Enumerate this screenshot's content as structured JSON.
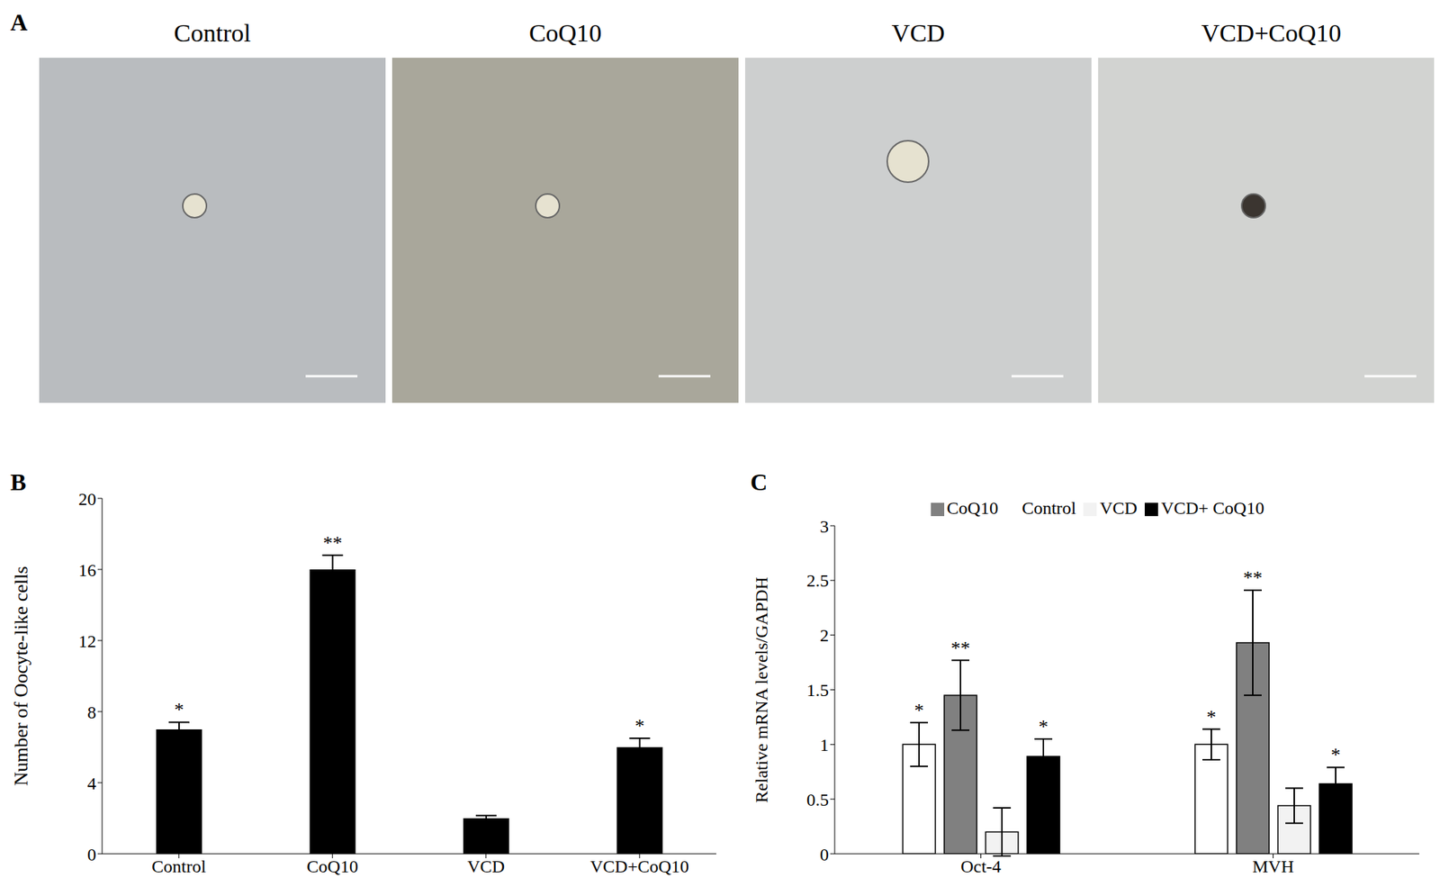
{
  "panel_a": {
    "label": "A",
    "titles": [
      "Control",
      "CoQ10",
      "VCD",
      "VCD+CoQ10"
    ]
  },
  "chart_data": [
    {
      "type": "bar",
      "label": "B",
      "y_label": "Number of Oocyte-like cells",
      "categories": [
        "Control",
        "CoQ10",
        "VCD",
        "VCD+CoQ10"
      ],
      "values": [
        7,
        16,
        2,
        6
      ],
      "errors": [
        0.4,
        0.8,
        0.15,
        0.5
      ],
      "significance": [
        "*",
        "**",
        null,
        "*"
      ],
      "color": "#000000",
      "ylim": [
        0,
        20
      ],
      "yticks": [
        0,
        4,
        8,
        12,
        16,
        20
      ],
      "grid": false
    },
    {
      "type": "bar",
      "label": "C",
      "y_label": "Relative mRNA levels/GAPDH",
      "categories": [
        "Oct-4",
        "MVH"
      ],
      "series": [
        {
          "name": "Control",
          "color": "#ffffff",
          "values": [
            1,
            1
          ],
          "errors": [
            0.2,
            0.14
          ],
          "significance": [
            "*",
            "*"
          ]
        },
        {
          "name": "CoQ10",
          "color": "#808080",
          "values": [
            1.45,
            1.93
          ],
          "errors": [
            0.32,
            0.48
          ],
          "significance": [
            "**",
            "**"
          ]
        },
        {
          "name": "VCD",
          "color": "#f2f2f2",
          "values": [
            0.2,
            0.44
          ],
          "errors": [
            0.22,
            0.16
          ],
          "significance": [
            null,
            null
          ]
        },
        {
          "name": "VCD+ CoQ10",
          "color": "#000000",
          "values": [
            0.89,
            0.64
          ],
          "errors": [
            0.16,
            0.15
          ],
          "significance": [
            "*",
            "*"
          ]
        }
      ],
      "ylim": [
        0,
        3
      ],
      "yticks": [
        0,
        0.5,
        1,
        1.5,
        2,
        2.5,
        3
      ],
      "legend": "top",
      "grid": false
    }
  ]
}
